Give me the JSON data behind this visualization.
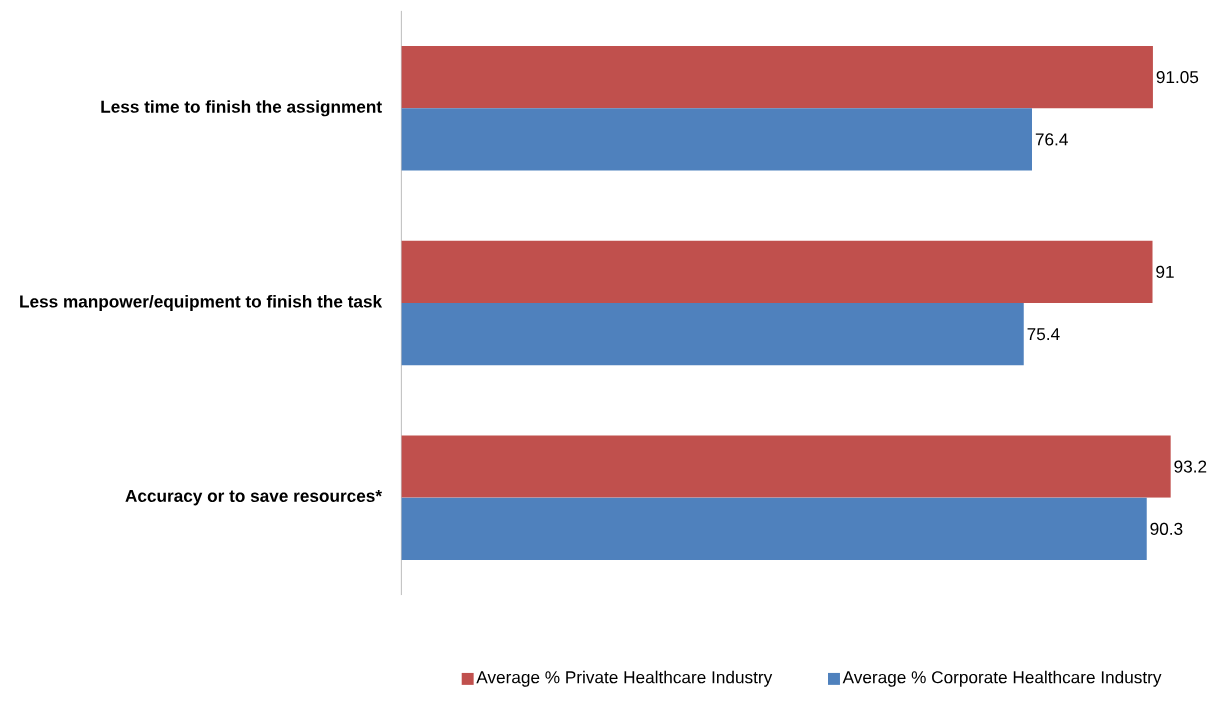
{
  "chart_data": {
    "type": "bar",
    "orientation": "horizontal",
    "categories": [
      "Less time to finish the assignment",
      "Less manpower/equipment to finish the task",
      "Accuracy or to save resources*"
    ],
    "series": [
      {
        "name": "Average % Private Healthcare Industry",
        "color": "#c0504d",
        "values": [
          91.05,
          91,
          93.2
        ]
      },
      {
        "name": "Average % Corporate Healthcare Industry",
        "color": "#4f81bd",
        "values": [
          76.4,
          75.4,
          90.3
        ]
      }
    ],
    "data_labels": true,
    "legend": "bottom"
  }
}
